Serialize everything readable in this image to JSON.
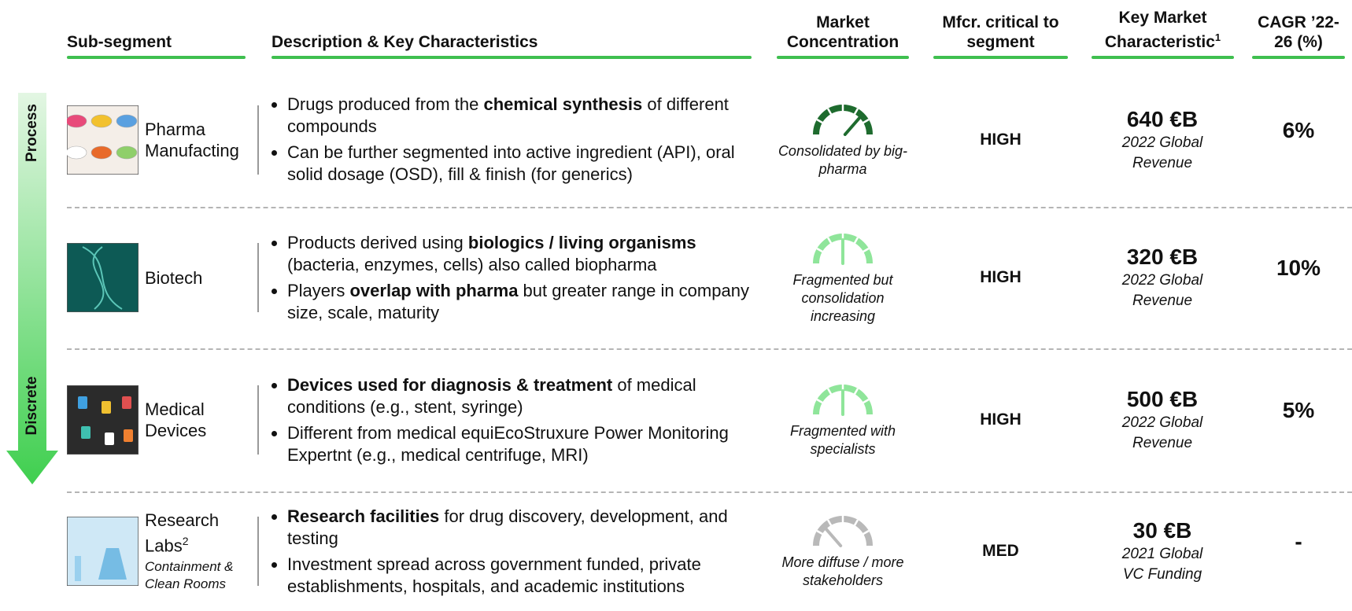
{
  "header": {
    "columns": [
      {
        "text": "Sub-segment"
      },
      {
        "text": "Description & Key Characteristics"
      },
      {
        "text": "Market Concentration"
      },
      {
        "text": "Mfcr. critical to segment"
      },
      {
        "text": "Key Market Characteristic",
        "sup": "1"
      },
      {
        "text": "CAGR ’22-26 (%)"
      }
    ]
  },
  "axis": {
    "top": "Process",
    "bottom": "Discrete"
  },
  "rows": [
    {
      "name": "Pharma Manufacting",
      "bullets": [
        [
          {
            "text": "Drugs produced from the "
          },
          {
            "text": "chemical synthesis",
            "bold": true
          },
          {
            "text": " of different compounds"
          }
        ],
        [
          {
            "text": "Can be further segmented into active ingredient (API), oral solid dosage (OSD), fill & finish (for generics)"
          }
        ]
      ],
      "concentration": "Consolidated by big-pharma",
      "mfcr": "HIGH",
      "market_value": "640 €B",
      "market_caption": "2022 Global Revenue",
      "cagr": "6%"
    },
    {
      "name": "Biotech",
      "bullets": [
        [
          {
            "text": "Products derived using "
          },
          {
            "text": "biologics /  living organisms",
            "bold": true
          },
          {
            "text": " (bacteria, enzymes, cells)  also called biopharma"
          }
        ],
        [
          {
            "text": "Players "
          },
          {
            "text": "overlap with pharma",
            "bold": true
          },
          {
            "text": " but greater range in company size, scale, maturity"
          }
        ]
      ],
      "concentration": "Fragmented but consolidation increasing",
      "mfcr": "HIGH",
      "market_value": "320 €B",
      "market_caption": "2022 Global Revenue",
      "cagr": "10%"
    },
    {
      "name": "Medical Devices",
      "bullets": [
        [
          {
            "text": "Devices used for diagnosis & treatment",
            "bold": true
          },
          {
            "text": " of medical conditions (e.g., stent, syringe)"
          }
        ],
        [
          {
            "text": "Different from medical equiEcoStruxure Power Monitoring Expertnt (e.g., medical centrifuge, MRI)"
          }
        ]
      ],
      "concentration": "Fragmented with specialists",
      "mfcr": "HIGH",
      "market_value": "500 €B",
      "market_caption": "2022 Global Revenue",
      "cagr": "5%"
    },
    {
      "name": "Research Labs",
      "sup": "2",
      "subtitle": "Containment & Clean Rooms",
      "bullets": [
        [
          {
            "text": "Research facilities",
            "bold": true
          },
          {
            "text": " for drug discovery, development, and testing"
          }
        ],
        [
          {
            "text": "Investment spread across government funded, private establishments, hospitals, and academic institutions"
          }
        ]
      ],
      "concentration": "More diffuse / more stakeholders",
      "mfcr": "MED",
      "market_value": "30 €B",
      "market_caption": "2021 Global VC Funding",
      "cagr": "-"
    }
  ]
}
